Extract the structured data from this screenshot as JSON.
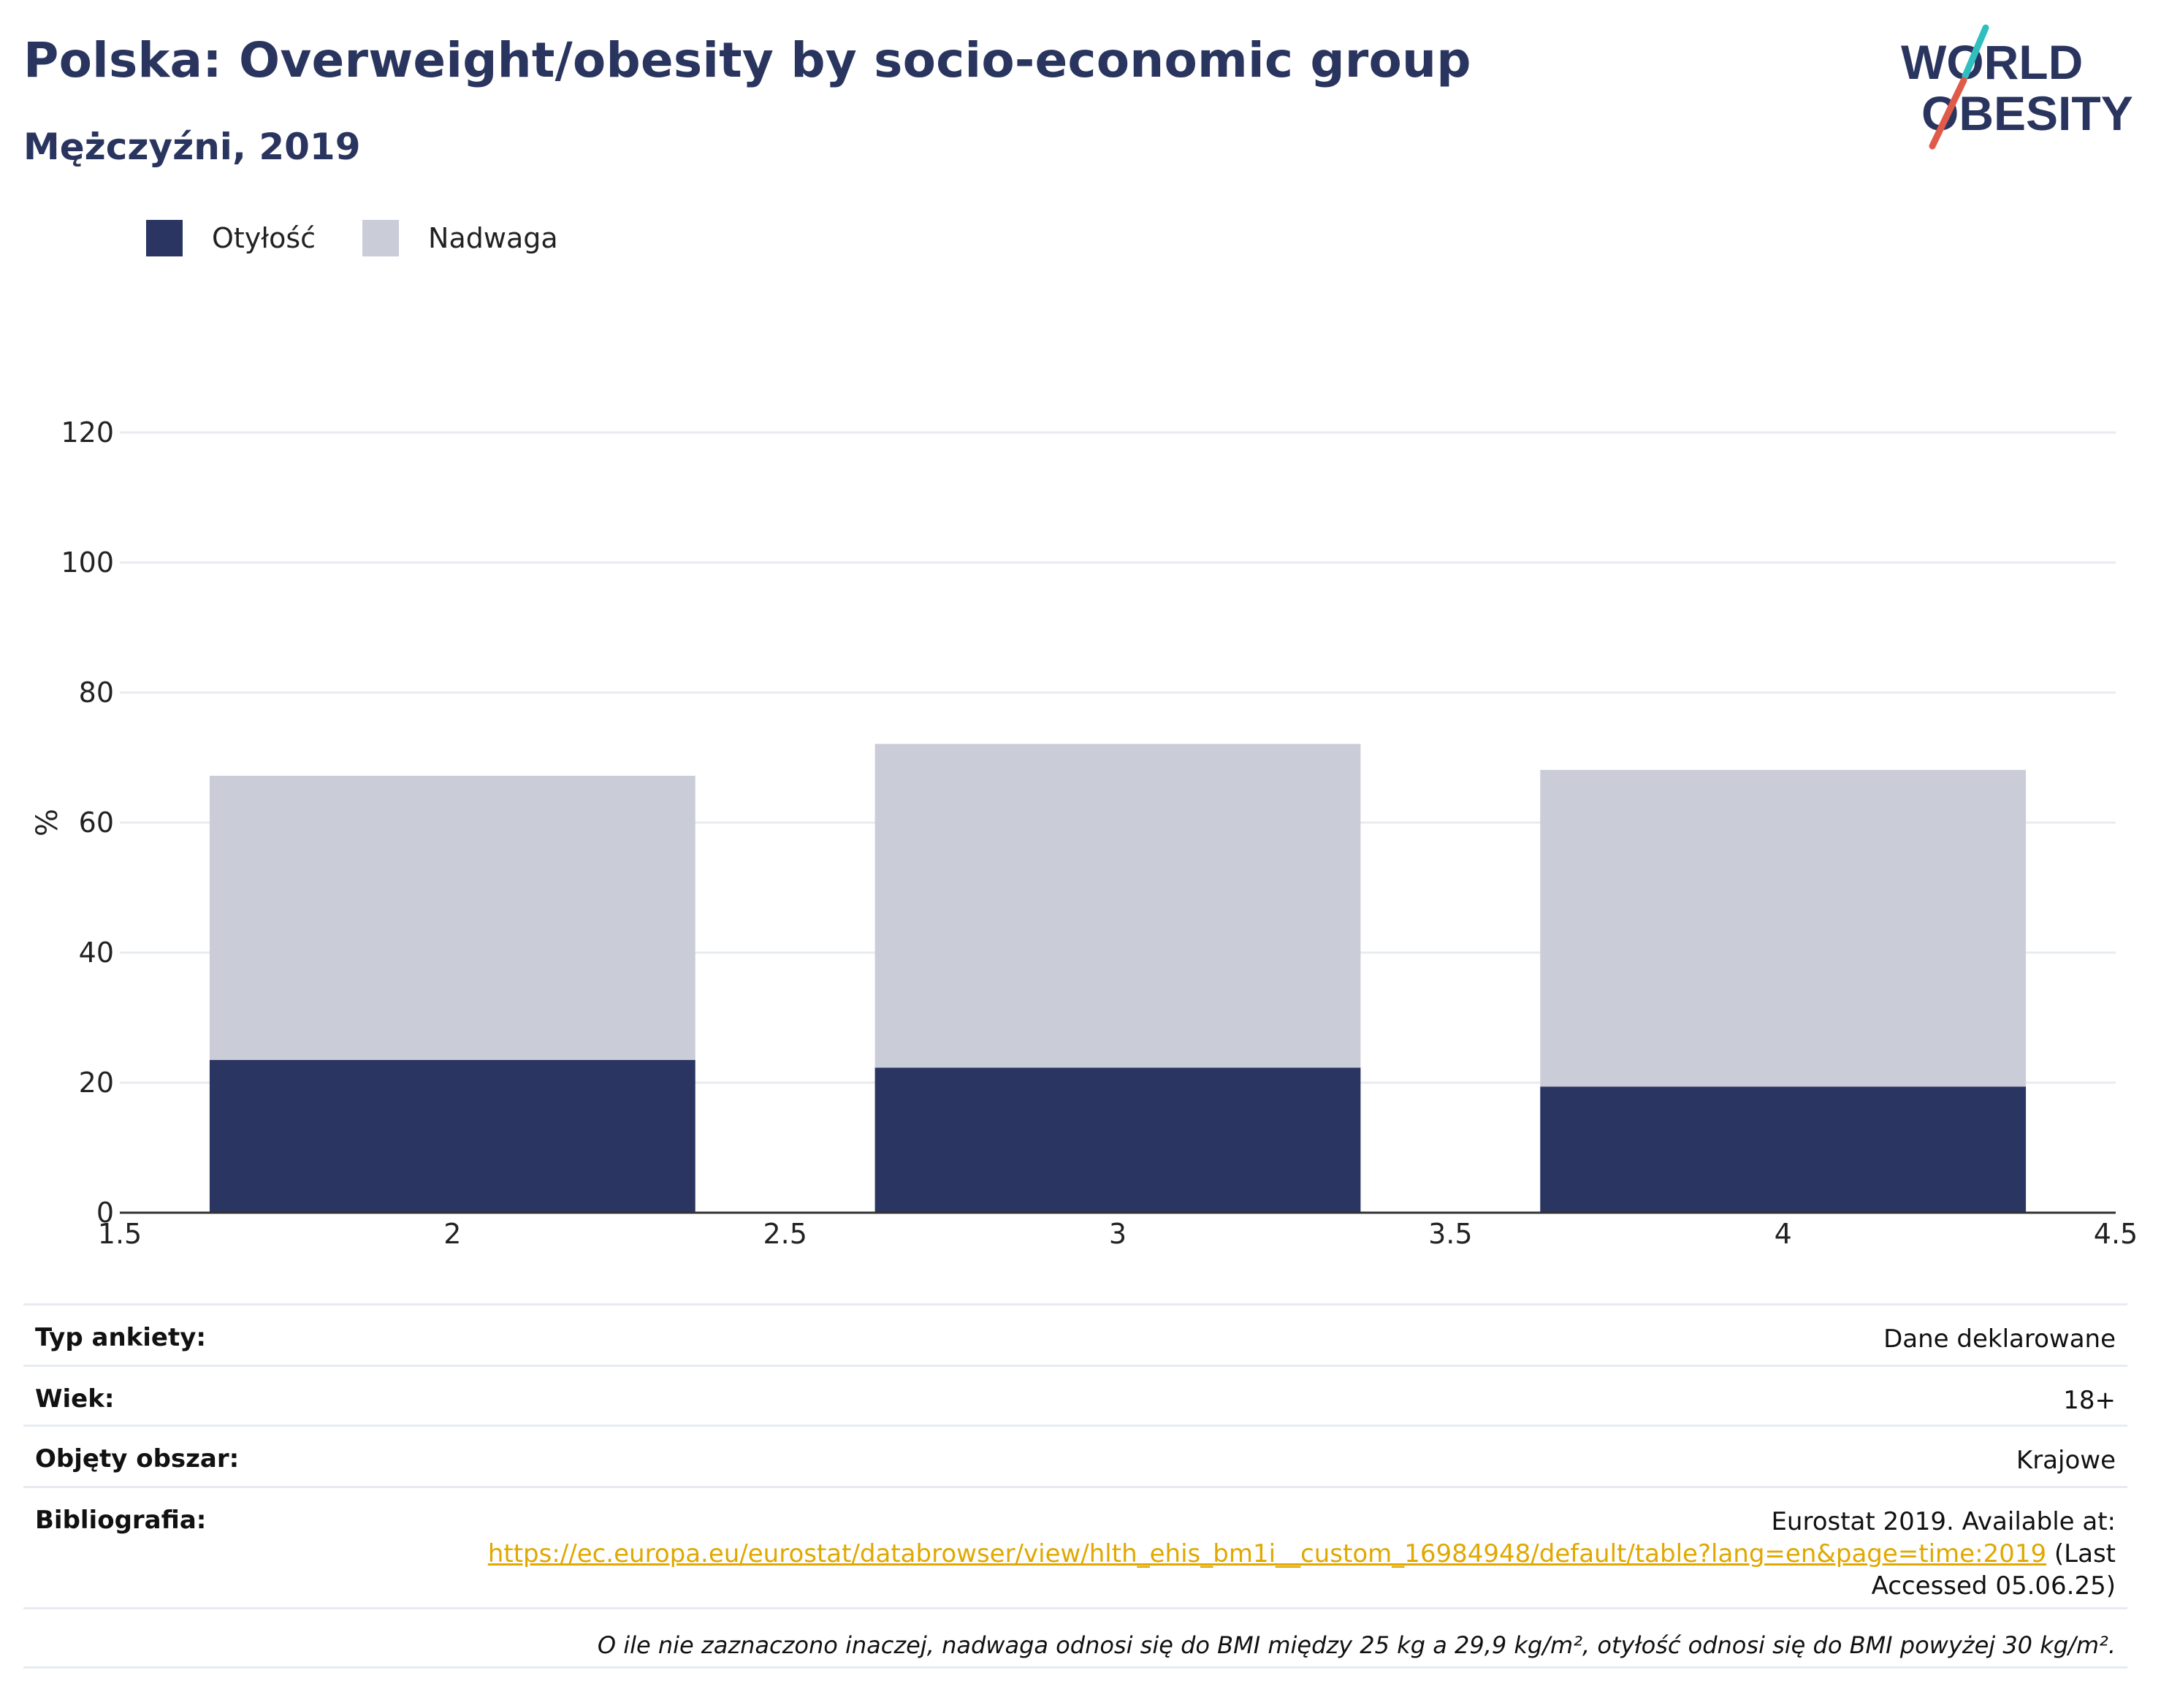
{
  "header": {
    "title": "Polska: Overweight/obesity by socio-economic group",
    "subtitle": "Mężczyźni, 2019"
  },
  "logo": {
    "line1": "WORLD",
    "line2": "OBESITY",
    "icon": "world-obesity-logo",
    "colors": [
      "#2a355f",
      "#e05a4a",
      "#2fbfbf"
    ]
  },
  "chart_data": {
    "type": "bar",
    "stacked": true,
    "x": [
      2,
      3,
      4
    ],
    "series": [
      {
        "name": "Otyłość",
        "values": [
          23.5,
          22.3,
          19.4
        ],
        "color": "#2a3562"
      },
      {
        "name": "Nadwaga",
        "values": [
          43.7,
          49.8,
          48.7
        ],
        "color": "#cacdd8"
      }
    ],
    "xlim": [
      1.5,
      4.5
    ],
    "xticks": [
      "1.5",
      "2",
      "2.5",
      "3",
      "3.5",
      "4",
      "4.5"
    ],
    "ylim": [
      0,
      120
    ],
    "yticks": [
      "0",
      "20",
      "40",
      "60",
      "80",
      "100",
      "120"
    ],
    "ylabel": "%",
    "xlabel": "",
    "grid": true,
    "legend_position": "top-left"
  },
  "info": {
    "survey_type": {
      "label": "Typ ankiety:",
      "value": "Dane deklarowane"
    },
    "age": {
      "label": "Wiek:",
      "value": "18+"
    },
    "area": {
      "label": "Objęty obszar:",
      "value": "Krajowe"
    },
    "bibliography": {
      "label": "Bibliografia:",
      "prefix": "Eurostat 2019. Available at:",
      "link": "https://ec.europa.eu/eurostat/databrowser/view/hlth_ehis_bm1i__custom_16984948/default/table?lang=en&page=time:2019",
      "suffix": " (Last",
      "suffix2": "Accessed 05.06.25)"
    },
    "note": "O ile nie zaznaczono inaczej, nadwaga odnosi się do BMI między 25 kg a 29,9 kg/m², otyłość odnosi się do BMI powyżej 30 kg/m²."
  }
}
